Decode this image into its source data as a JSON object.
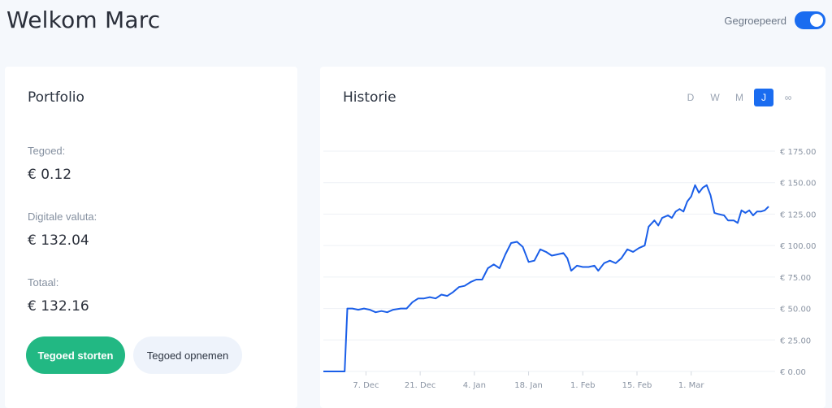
{
  "header": {
    "welcome": "Welkom Marc",
    "group_label": "Gegroepeerd",
    "grouped_on": true
  },
  "portfolio": {
    "title": "Portfolio",
    "balance_label": "Tegoed:",
    "balance_value": "€ 0.12",
    "crypto_label": "Digitale valuta:",
    "crypto_value": "€ 132.04",
    "total_label": "Totaal:",
    "total_value": "€ 132.16",
    "deposit_button": "Tegoed storten",
    "withdraw_button": "Tegoed opnemen"
  },
  "history": {
    "title": "Historie",
    "ranges": [
      {
        "label": "D",
        "active": false
      },
      {
        "label": "W",
        "active": false
      },
      {
        "label": "M",
        "active": false
      },
      {
        "label": "J",
        "active": true
      },
      {
        "label": "∞",
        "active": false
      }
    ]
  },
  "colors": {
    "accent": "#1a6cf0",
    "deposit": "#22b883",
    "line": "#1a5ee8"
  },
  "chart_data": {
    "type": "line",
    "ylim": [
      0,
      175
    ],
    "yticks": [
      "€ 0.00",
      "€ 25.00",
      "€ 50.00",
      "€ 75.00",
      "€ 100.00",
      "€ 125.00",
      "€ 150.00",
      "€ 175.00"
    ],
    "xticks": [
      {
        "label": "7. Dec",
        "x": 11
      },
      {
        "label": "21. Dec",
        "x": 25
      },
      {
        "label": "4. Jan",
        "x": 39
      },
      {
        "label": "18. Jan",
        "x": 53
      },
      {
        "label": "1. Feb",
        "x": 67
      },
      {
        "label": "15. Feb",
        "x": 81
      },
      {
        "label": "1. Mar",
        "x": 95
      }
    ],
    "series": [
      {
        "points": [
          [
            0,
            0
          ],
          [
            5.5,
            0
          ],
          [
            6.2,
            50
          ],
          [
            7.5,
            50
          ],
          [
            9,
            49
          ],
          [
            10.5,
            50
          ],
          [
            12,
            49
          ],
          [
            13.5,
            47
          ],
          [
            15,
            48
          ],
          [
            16.5,
            47
          ],
          [
            18,
            49
          ],
          [
            20,
            50
          ],
          [
            21.5,
            50
          ],
          [
            23,
            55
          ],
          [
            24.5,
            58
          ],
          [
            26,
            58
          ],
          [
            27.5,
            59
          ],
          [
            29,
            58
          ],
          [
            30.5,
            61
          ],
          [
            32,
            60
          ],
          [
            33.5,
            63
          ],
          [
            35,
            67
          ],
          [
            36.5,
            68
          ],
          [
            38,
            71
          ],
          [
            39.5,
            73
          ],
          [
            41,
            73
          ],
          [
            42.5,
            82
          ],
          [
            44,
            85
          ],
          [
            45.5,
            82
          ],
          [
            47,
            93
          ],
          [
            48.5,
            102
          ],
          [
            50,
            103
          ],
          [
            51.5,
            99
          ],
          [
            53,
            87
          ],
          [
            54.5,
            88
          ],
          [
            56,
            97
          ],
          [
            57.5,
            95
          ],
          [
            59,
            92
          ],
          [
            60.5,
            93
          ],
          [
            62,
            94
          ],
          [
            63,
            90
          ],
          [
            64,
            80
          ],
          [
            65.5,
            84
          ],
          [
            67,
            83
          ],
          [
            68.5,
            83
          ],
          [
            70,
            84
          ],
          [
            71,
            80
          ],
          [
            72.5,
            86
          ],
          [
            74,
            88
          ],
          [
            75.5,
            86
          ],
          [
            77,
            90
          ],
          [
            78.5,
            97
          ],
          [
            80,
            95
          ],
          [
            81.5,
            98
          ],
          [
            83,
            100
          ],
          [
            84,
            115
          ],
          [
            85.5,
            120
          ],
          [
            86.5,
            116
          ],
          [
            87.5,
            122
          ],
          [
            89,
            124
          ],
          [
            90,
            122
          ],
          [
            91,
            127
          ],
          [
            92,
            129
          ],
          [
            93,
            127
          ],
          [
            94,
            135
          ],
          [
            95,
            139
          ],
          [
            96,
            148
          ],
          [
            97,
            142
          ],
          [
            98,
            146
          ],
          [
            99,
            148
          ],
          [
            100,
            140
          ],
          [
            101,
            126
          ],
          [
            102,
            125
          ],
          [
            103.5,
            124
          ],
          [
            104.5,
            120
          ],
          [
            106,
            120
          ],
          [
            107,
            118
          ],
          [
            108,
            128
          ],
          [
            109,
            126
          ],
          [
            110,
            128
          ],
          [
            111,
            124
          ],
          [
            112,
            127
          ],
          [
            113,
            127
          ],
          [
            114,
            128
          ],
          [
            115,
            131
          ]
        ]
      }
    ]
  }
}
